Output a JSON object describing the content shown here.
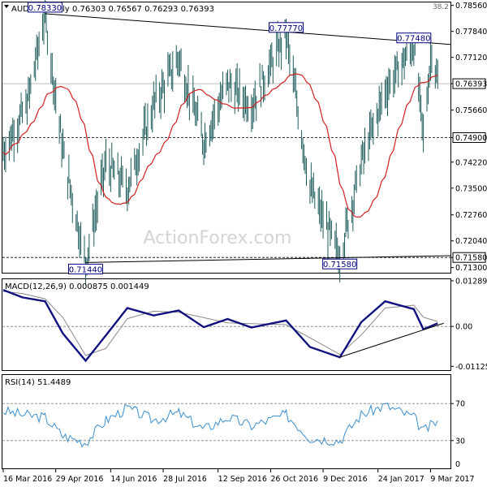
{
  "header": {
    "symbol": "AUDUSD,Daily",
    "ohlc": "0.76303 0.76567 0.76293 0.76393",
    "scale_note": "38.2"
  },
  "watermark": "ActionForex.com",
  "colors": {
    "bar": "#1f5c5c",
    "ma": "#d42020",
    "macd": "#101080",
    "macd_signal": "#8a8a8a",
    "rsi": "#3a8fd0",
    "box_bg": "#ffffff",
    "box_text": "#000080",
    "axis_text": "#000000",
    "level_line": "#000000"
  },
  "chart_data": [
    {
      "type": "candlestick",
      "title": "AUDUSD,Daily",
      "series": [
        {
          "name": "price (OHLC bars)"
        },
        {
          "name": "moving average"
        }
      ],
      "ylim": [
        0.7118,
        0.7862
      ],
      "y_ticks": [
        "0.78560",
        "0.77840",
        "0.77120",
        "0.76393",
        "0.75660",
        "0.74900",
        "0.74220",
        "0.73500",
        "0.72760",
        "0.72040",
        "0.71580",
        "0.71300"
      ],
      "y_tick_values": [
        0.7856,
        0.7784,
        0.7712,
        0.76393,
        0.7566,
        0.749,
        0.7422,
        0.735,
        0.7276,
        0.7204,
        0.7158,
        0.713
      ],
      "highlight_ticks": [
        "0.76393",
        "0.74900",
        "0.71580"
      ],
      "x_ticks": [
        "16 Mar 2016",
        "29 Apr 2016",
        "14 Jun 2016",
        "28 Jul 2016",
        "12 Sep 2016",
        "26 Oct 2016",
        "9 Dec 2016",
        "24 Jan 2017",
        "9 Mar 2017"
      ],
      "annotations": [
        {
          "label": "0.78330",
          "date": "2016-04-20",
          "value": 0.7833
        },
        {
          "label": "0.77770",
          "date": "2016-11-08",
          "value": 0.7777
        },
        {
          "label": "0.77480",
          "date": "2017-02-23",
          "value": 0.7748
        },
        {
          "label": "0.71440",
          "date": "2016-05-24",
          "value": 0.7144
        },
        {
          "label": "0.71580",
          "date": "2016-12-23",
          "value": 0.7158
        }
      ],
      "current_price": 0.76393,
      "trendlines": [
        {
          "from": {
            "date": "2016-04-20",
            "value": 0.7833
          },
          "to": {
            "date": "2017-03-15",
            "value": 0.7748
          }
        },
        {
          "from": {
            "date": "2016-05-24",
            "value": 0.7144
          },
          "to": {
            "date": "2017-03-15",
            "value": 0.7163
          }
        }
      ],
      "horizontal_levels": [
        0.749,
        0.7158
      ]
    },
    {
      "type": "line",
      "title": "MACD(12,26,9) 0.000875 0.001449",
      "series": [
        {
          "name": "MACD"
        },
        {
          "name": "signal"
        }
      ],
      "ylim": [
        -0.0121,
        0.0131
      ],
      "y_ticks": [
        "0.012894",
        "0.00",
        "-0.011253"
      ],
      "y_tick_values": [
        0.012894,
        0,
        -0.011253
      ],
      "values": [
        {
          "date": "2016-03-16",
          "macd": 0.0103,
          "signal": 0.0099
        },
        {
          "date": "2016-04-01",
          "macd": 0.0082,
          "signal": 0.0093
        },
        {
          "date": "2016-04-20",
          "macd": 0.0071,
          "signal": 0.0078
        },
        {
          "date": "2016-05-05",
          "macd": -0.002,
          "signal": 0.0025
        },
        {
          "date": "2016-05-24",
          "macd": -0.0097,
          "signal": -0.0082
        },
        {
          "date": "2016-06-10",
          "macd": -0.0025,
          "signal": -0.0062
        },
        {
          "date": "2016-06-28",
          "macd": 0.0052,
          "signal": 0.0022
        },
        {
          "date": "2016-07-20",
          "macd": 0.0031,
          "signal": 0.0043
        },
        {
          "date": "2016-08-10",
          "macd": 0.0045,
          "signal": 0.004
        },
        {
          "date": "2016-08-31",
          "macd": -0.0002,
          "signal": 0.0025
        },
        {
          "date": "2016-09-20",
          "macd": 0.0021,
          "signal": 0.001
        },
        {
          "date": "2016-10-10",
          "macd": -0.0003,
          "signal": 0.0008
        },
        {
          "date": "2016-11-08",
          "macd": 0.0017,
          "signal": 0.0005
        },
        {
          "date": "2016-11-28",
          "macd": -0.0058,
          "signal": -0.0032
        },
        {
          "date": "2016-12-23",
          "macd": -0.0087,
          "signal": -0.0079
        },
        {
          "date": "2017-01-10",
          "macd": 0.0012,
          "signal": -0.0024
        },
        {
          "date": "2017-01-30",
          "macd": 0.0071,
          "signal": 0.0052
        },
        {
          "date": "2017-02-23",
          "macd": 0.0049,
          "signal": 0.006
        },
        {
          "date": "2017-03-03",
          "macd": -0.0008,
          "signal": 0.0026
        },
        {
          "date": "2017-03-15",
          "macd": 0.0009,
          "signal": 0.0014
        }
      ],
      "trendlines": [
        {
          "from": {
            "date": "2016-12-23",
            "value": -0.0087
          },
          "to": {
            "date": "2017-03-20",
            "value": 0.0009
          }
        }
      ]
    },
    {
      "type": "line",
      "title": "RSI(14) 51.4489",
      "series": [
        {
          "name": "RSI(14)"
        }
      ],
      "ylim": [
        0,
        100
      ],
      "y_ticks": [
        "70",
        "30"
      ],
      "y_tick_values": [
        70,
        30
      ],
      "bottom_tick": "0",
      "values": [
        {
          "date": "2016-03-16",
          "rsi": 62
        },
        {
          "date": "2016-04-01",
          "rsi": 58
        },
        {
          "date": "2016-04-20",
          "rsi": 55
        },
        {
          "date": "2016-05-05",
          "rsi": 35
        },
        {
          "date": "2016-05-24",
          "rsi": 28
        },
        {
          "date": "2016-06-10",
          "rsi": 52
        },
        {
          "date": "2016-06-28",
          "rsi": 65
        },
        {
          "date": "2016-07-20",
          "rsi": 52
        },
        {
          "date": "2016-08-10",
          "rsi": 60
        },
        {
          "date": "2016-08-31",
          "rsi": 42
        },
        {
          "date": "2016-09-20",
          "rsi": 55
        },
        {
          "date": "2016-10-10",
          "rsi": 46
        },
        {
          "date": "2016-11-08",
          "rsi": 58
        },
        {
          "date": "2016-11-28",
          "rsi": 33
        },
        {
          "date": "2016-12-23",
          "rsi": 30
        },
        {
          "date": "2017-01-10",
          "rsi": 58
        },
        {
          "date": "2017-01-30",
          "rsi": 68
        },
        {
          "date": "2017-02-23",
          "rsi": 55
        },
        {
          "date": "2017-03-03",
          "rsi": 40
        },
        {
          "date": "2017-03-15",
          "rsi": 51.45
        }
      ]
    }
  ]
}
